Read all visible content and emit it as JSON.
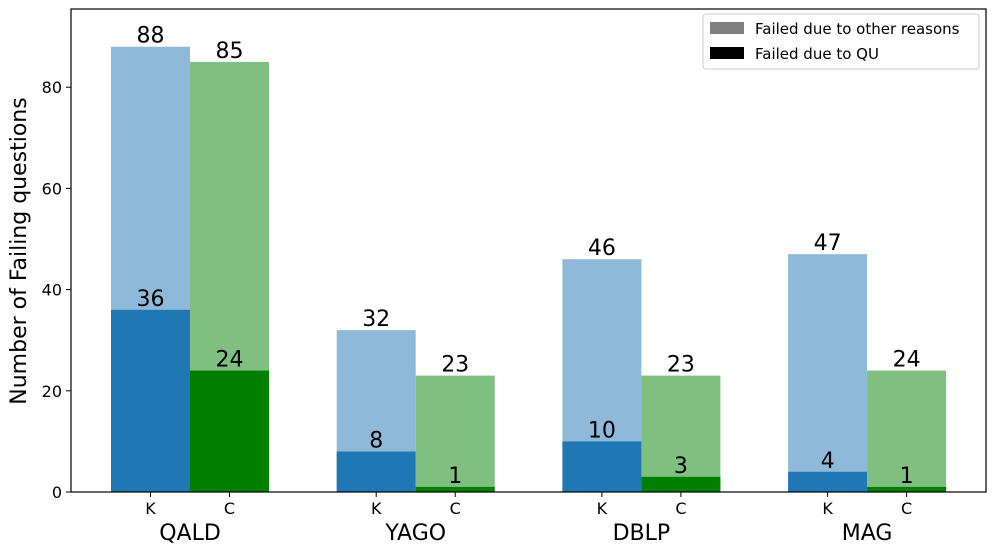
{
  "chart_data": {
    "type": "bar",
    "ylabel": "Number of Failing questions",
    "ylim": [
      0,
      94
    ],
    "yticks": [
      0,
      20,
      40,
      60,
      80
    ],
    "groups": [
      "QALD",
      "YAGO",
      "DBLP",
      "MAG"
    ],
    "bar_labels": [
      "K",
      "C"
    ],
    "series": [
      {
        "name": "Failed due to other reasons",
        "role": "total",
        "K": [
          88,
          32,
          46,
          47
        ],
        "C": [
          85,
          23,
          23,
          24
        ]
      },
      {
        "name": "Failed due to QU",
        "role": "qu",
        "K": [
          36,
          8,
          10,
          4
        ],
        "C": [
          24,
          1,
          3,
          1
        ]
      }
    ],
    "colors": {
      "K_total": "#8fb9d9",
      "K_qu": "#1f77b4",
      "C_total": "#7fbf7f",
      "C_qu": "#007f00",
      "legend_other": "#808080",
      "legend_qu": "#000000"
    },
    "grid": false,
    "legend_position": "top-right"
  }
}
